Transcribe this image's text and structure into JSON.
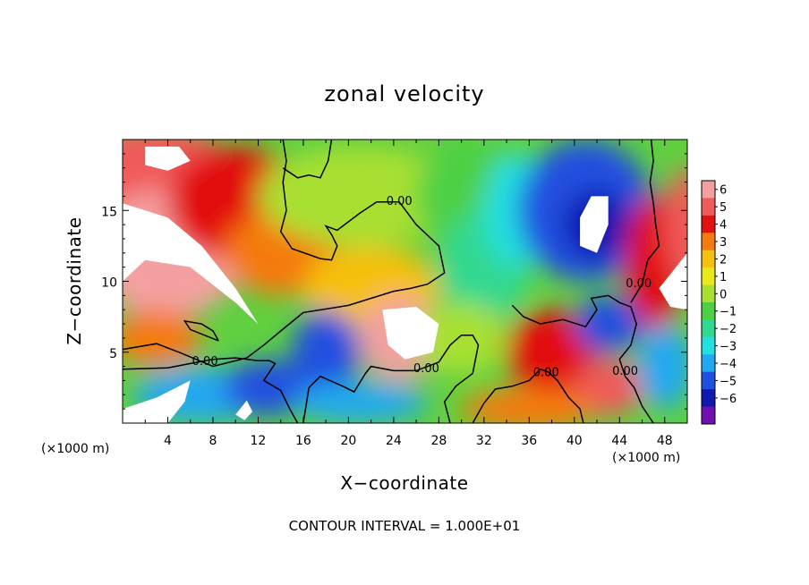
{
  "chart_data": {
    "type": "heatmap",
    "title": "zonal velocity",
    "xlabel": "X−coordinate",
    "ylabel": "Z−coordinate",
    "x_unit": "(×1000 m)",
    "z_unit": "(×1000 m)",
    "xlim": [
      0,
      50
    ],
    "ylim": [
      0,
      20
    ],
    "x_ticks": [
      4,
      8,
      12,
      16,
      20,
      24,
      28,
      32,
      36,
      40,
      44,
      48
    ],
    "y_ticks": [
      5,
      10,
      15
    ],
    "x_tick_labels": [
      "4",
      "8",
      "12",
      "16",
      "20",
      "24",
      "28",
      "32",
      "36",
      "40",
      "44",
      "48"
    ],
    "y_tick_labels": [
      "5",
      "10",
      "15"
    ],
    "colorbar": {
      "levels": [
        6,
        5,
        4,
        3,
        2,
        1,
        0,
        -1,
        -2,
        -3,
        -4,
        -5,
        -6
      ],
      "labels": [
        "6",
        "5",
        "4",
        "3",
        "2",
        "1",
        "0",
        "−1",
        "−2",
        "−3",
        "−4",
        "−5",
        "−6"
      ],
      "colors": [
        "#f4a0a0",
        "#f05a5a",
        "#e21010",
        "#f57a10",
        "#f6c010",
        "#e8e81a",
        "#a8e030",
        "#4ed044",
        "#30d890",
        "#20e0e0",
        "#20a8f0",
        "#2050e0",
        "#1018b0",
        "#7010b0"
      ]
    },
    "contour_labels": [
      {
        "text": "0.00",
        "x": 24.5,
        "y": 15.4
      },
      {
        "text": "0.00",
        "x": 7.3,
        "y": 4.1
      },
      {
        "text": "0.00",
        "x": 26.9,
        "y": 3.6
      },
      {
        "text": "0.00",
        "x": 37.5,
        "y": 3.3
      },
      {
        "text": "0.00",
        "x": 44.5,
        "y": 3.4
      },
      {
        "text": "0.00",
        "x": 45.7,
        "y": 9.6
      }
    ],
    "field_blobs": [
      {
        "x": 3,
        "y": 17.5,
        "rx": 7,
        "ry": 3.5,
        "v": 5
      },
      {
        "x": 4,
        "y": 12,
        "rx": 7,
        "ry": 4.5,
        "v": 6
      },
      {
        "x": 10,
        "y": 15.5,
        "rx": 6,
        "ry": 4,
        "v": 4
      },
      {
        "x": 14,
        "y": 12,
        "rx": 5,
        "ry": 3,
        "v": 3
      },
      {
        "x": 22,
        "y": 9.5,
        "rx": 6,
        "ry": 3,
        "v": 2
      },
      {
        "x": 21,
        "y": 16,
        "rx": 9,
        "ry": 3.5,
        "v": 0
      },
      {
        "x": 31,
        "y": 16,
        "rx": 5,
        "ry": 4,
        "v": -1
      },
      {
        "x": 32,
        "y": 11,
        "rx": 4,
        "ry": 4,
        "v": -2
      },
      {
        "x": 35,
        "y": 15,
        "rx": 3,
        "ry": 4,
        "v": -3
      },
      {
        "x": 41,
        "y": 15,
        "rx": 6,
        "ry": 5,
        "v": -5
      },
      {
        "x": 42,
        "y": 14,
        "rx": 3,
        "ry": 2.5,
        "v": -6
      },
      {
        "x": 47,
        "y": 11,
        "rx": 2.5,
        "ry": 5,
        "v": 4
      },
      {
        "x": 50,
        "y": 14,
        "rx": 2,
        "ry": 4,
        "v": 5
      },
      {
        "x": 18,
        "y": 5,
        "rx": 3,
        "ry": 3,
        "v": -5
      },
      {
        "x": 24.5,
        "y": 6,
        "rx": 3.5,
        "ry": 3,
        "v": 6
      },
      {
        "x": 7,
        "y": 2,
        "rx": 6,
        "ry": 2,
        "v": -4
      },
      {
        "x": 13,
        "y": 2.5,
        "rx": 4,
        "ry": 2,
        "v": -5
      },
      {
        "x": 21,
        "y": 1.5,
        "rx": 6,
        "ry": 1.5,
        "v": -4
      },
      {
        "x": 30,
        "y": 6,
        "rx": 4,
        "ry": 2.5,
        "v": 0
      },
      {
        "x": 38,
        "y": 5,
        "rx": 4,
        "ry": 3,
        "v": 4
      },
      {
        "x": 43,
        "y": 2.5,
        "rx": 3,
        "ry": 2,
        "v": 5
      },
      {
        "x": 36,
        "y": 1,
        "rx": 6,
        "ry": 1.5,
        "v": 3
      },
      {
        "x": 48,
        "y": 4,
        "rx": 2.5,
        "ry": 3,
        "v": -4
      },
      {
        "x": 43,
        "y": 7,
        "rx": 3,
        "ry": 2,
        "v": -5
      },
      {
        "x": 3,
        "y": 6,
        "rx": 4,
        "ry": 2,
        "v": 3
      }
    ]
  },
  "footer": {
    "contour_interval_text": "CONTOUR INTERVAL = 1.000E+01"
  },
  "colors": {
    "contour": "#000000",
    "missing": "#ffffff"
  }
}
